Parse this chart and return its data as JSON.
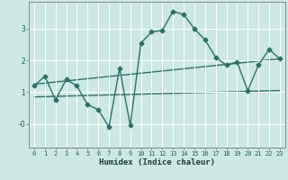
{
  "xlabel": "Humidex (Indice chaleur)",
  "bg_color": "#cce8e4",
  "line_color": "#2a7068",
  "grid_color": "#ffffff",
  "xlim": [
    -0.5,
    23.5
  ],
  "ylim": [
    -0.75,
    3.85
  ],
  "xticks": [
    0,
    1,
    2,
    3,
    4,
    5,
    6,
    7,
    8,
    9,
    10,
    11,
    12,
    13,
    14,
    15,
    16,
    17,
    18,
    19,
    20,
    21,
    22,
    23
  ],
  "yticks": [
    -0.0,
    1.0,
    2.0,
    3.0
  ],
  "ytick_labels": [
    "-0",
    "1",
    "2",
    "3"
  ],
  "series1_x": [
    0,
    1,
    2,
    3,
    4,
    5,
    6,
    7,
    8,
    9,
    10,
    11,
    12,
    13,
    14,
    15,
    16,
    17,
    18,
    19,
    20,
    21,
    22,
    23
  ],
  "series1_y": [
    1.2,
    1.5,
    0.75,
    1.4,
    1.2,
    0.6,
    0.45,
    -0.1,
    1.75,
    -0.05,
    2.55,
    2.9,
    2.95,
    3.55,
    3.45,
    3.0,
    2.65,
    2.1,
    1.85,
    1.95,
    1.05,
    1.85,
    2.35,
    2.05
  ],
  "series2_x": [
    0,
    23
  ],
  "series2_y": [
    1.25,
    2.05
  ],
  "series3_x": [
    0,
    23
  ],
  "series3_y": [
    0.85,
    1.05
  ],
  "marker": "D",
  "marker_size": 2.5,
  "line_width": 1.0,
  "tick_fontsize": 5.0,
  "xlabel_fontsize": 6.5
}
